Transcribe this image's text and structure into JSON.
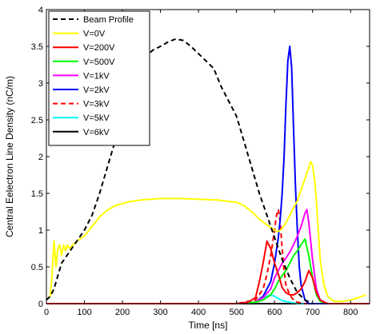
{
  "chart_data": {
    "type": "line",
    "title": "",
    "xlabel": "Time [ns]",
    "ylabel": "Central Eelectron Line Density (nC/m)",
    "xlim": [
      0,
      850
    ],
    "ylim": [
      0,
      4
    ],
    "xticks": [
      0,
      100,
      200,
      300,
      400,
      500,
      600,
      700,
      800
    ],
    "yticks": [
      0,
      0.5,
      1,
      1.5,
      2,
      2.5,
      3,
      3.5,
      4
    ],
    "grid": false,
    "legend_position": "top-left",
    "series": [
      {
        "name": "Beam Profile",
        "color": "#000000",
        "dash": "dashed",
        "x": [
          0,
          10,
          20,
          30,
          40,
          60,
          80,
          100,
          120,
          140,
          160,
          180,
          200,
          220,
          240,
          260,
          280,
          300,
          320,
          340,
          360,
          380,
          400,
          420,
          440,
          460,
          480,
          500,
          520,
          540,
          560,
          580,
          600,
          620,
          640,
          660,
          680,
          700
        ],
        "y": [
          0.05,
          0.1,
          0.2,
          0.38,
          0.55,
          0.7,
          0.85,
          1.0,
          1.2,
          1.5,
          1.85,
          2.2,
          2.6,
          2.95,
          3.2,
          3.35,
          3.45,
          3.5,
          3.56,
          3.6,
          3.58,
          3.5,
          3.4,
          3.3,
          3.2,
          2.95,
          2.75,
          2.55,
          2.2,
          1.85,
          1.5,
          1.2,
          0.9,
          0.6,
          0.35,
          0.15,
          0.05,
          0.0
        ]
      },
      {
        "name": "V=0V",
        "color": "#ffff00",
        "dash": "solid",
        "x": [
          0,
          10,
          15,
          20,
          25,
          30,
          35,
          40,
          45,
          50,
          55,
          60,
          70,
          80,
          100,
          120,
          140,
          160,
          180,
          200,
          220,
          250,
          300,
          350,
          400,
          450,
          480,
          500,
          520,
          540,
          560,
          580,
          600,
          610,
          620,
          630,
          640,
          650,
          660,
          670,
          680,
          690,
          695,
          700,
          705,
          710,
          715,
          720,
          730,
          740,
          750,
          760,
          780,
          800,
          820,
          840
        ],
        "y": [
          0.05,
          0.1,
          0.4,
          0.85,
          0.5,
          0.75,
          0.8,
          0.65,
          0.8,
          0.72,
          0.8,
          0.75,
          0.8,
          0.85,
          0.92,
          1.05,
          1.18,
          1.27,
          1.33,
          1.36,
          1.39,
          1.41,
          1.43,
          1.43,
          1.42,
          1.41,
          1.39,
          1.38,
          1.33,
          1.25,
          1.15,
          1.07,
          1.0,
          0.98,
          1.02,
          1.1,
          1.2,
          1.3,
          1.4,
          1.55,
          1.7,
          1.85,
          1.93,
          1.88,
          1.7,
          1.4,
          1.0,
          0.6,
          0.25,
          0.1,
          0.05,
          0.03,
          0.03,
          0.05,
          0.08,
          0.12
        ]
      },
      {
        "name": "V=200V",
        "color": "#ff0000",
        "dash": "solid",
        "x": [
          0,
          100,
          200,
          300,
          400,
          500,
          530,
          550,
          560,
          570,
          580,
          590,
          600,
          610,
          620,
          630,
          640,
          650,
          660,
          670,
          680,
          690,
          700,
          710,
          720,
          730,
          740,
          760,
          800,
          850
        ],
        "y": [
          0,
          0,
          0,
          0,
          0,
          0,
          0.02,
          0.08,
          0.3,
          0.55,
          0.85,
          0.75,
          0.55,
          0.4,
          0.22,
          0.15,
          0.12,
          0.12,
          0.15,
          0.2,
          0.3,
          0.45,
          0.35,
          0.15,
          0.05,
          0.02,
          0.0,
          0.0,
          0.0,
          0.0
        ]
      },
      {
        "name": "V=500V",
        "color": "#00ff00",
        "dash": "solid",
        "x": [
          0,
          100,
          200,
          300,
          400,
          500,
          550,
          570,
          590,
          600,
          610,
          620,
          630,
          640,
          650,
          660,
          670,
          680,
          690,
          700,
          710,
          720,
          740,
          800,
          850
        ],
        "y": [
          0,
          0,
          0,
          0,
          0,
          0,
          0.02,
          0.05,
          0.12,
          0.2,
          0.3,
          0.38,
          0.45,
          0.55,
          0.65,
          0.72,
          0.8,
          0.88,
          0.65,
          0.35,
          0.12,
          0.03,
          0.0,
          0.0,
          0.0
        ]
      },
      {
        "name": "V=1kV",
        "color": "#ff00ff",
        "dash": "solid",
        "x": [
          0,
          100,
          200,
          300,
          400,
          500,
          550,
          570,
          590,
          600,
          610,
          620,
          630,
          640,
          650,
          660,
          670,
          680,
          685,
          690,
          700,
          710,
          720,
          740,
          800,
          850
        ],
        "y": [
          0,
          0,
          0,
          0,
          0,
          0,
          0.02,
          0.08,
          0.2,
          0.35,
          0.45,
          0.55,
          0.62,
          0.7,
          0.8,
          0.92,
          1.05,
          1.23,
          1.28,
          1.1,
          0.6,
          0.2,
          0.05,
          0.0,
          0.0,
          0.0
        ]
      },
      {
        "name": "V=2kV",
        "color": "#0000ff",
        "dash": "solid",
        "x": [
          0,
          100,
          200,
          300,
          400,
          500,
          550,
          570,
          590,
          600,
          610,
          615,
          620,
          625,
          630,
          635,
          640,
          645,
          650,
          655,
          660,
          665,
          670,
          680,
          690,
          700,
          720,
          800,
          850
        ],
        "y": [
          0,
          0,
          0,
          0,
          0,
          0,
          0.02,
          0.1,
          0.3,
          0.55,
          0.9,
          1.15,
          1.5,
          2.0,
          2.7,
          3.3,
          3.5,
          3.2,
          2.4,
          1.6,
          1.0,
          0.5,
          0.25,
          0.05,
          0.0,
          0.0,
          0.0,
          0.0,
          0.0
        ]
      },
      {
        "name": "V=3kV",
        "color": "#ff0000",
        "dash": "dashed",
        "x": [
          0,
          100,
          200,
          300,
          400,
          500,
          550,
          570,
          580,
          590,
          600,
          605,
          610,
          615,
          620,
          625,
          630,
          640,
          650,
          660,
          680,
          700,
          800,
          850
        ],
        "y": [
          0,
          0,
          0,
          0,
          0,
          0,
          0.05,
          0.2,
          0.4,
          0.65,
          1.0,
          1.2,
          1.28,
          1.1,
          0.75,
          0.45,
          0.25,
          0.12,
          0.05,
          0.02,
          0.0,
          0.0,
          0.0,
          0.0
        ]
      },
      {
        "name": "V=5kV",
        "color": "#00ffff",
        "dash": "solid",
        "x": [
          0,
          100,
          200,
          300,
          400,
          500,
          550,
          560,
          570,
          580,
          590,
          600,
          610,
          620,
          640,
          660,
          680,
          700,
          800,
          850
        ],
        "y": [
          0,
          0,
          0,
          0,
          0,
          0,
          0.02,
          0.05,
          0.08,
          0.1,
          0.12,
          0.1,
          0.07,
          0.04,
          0.02,
          0.0,
          0.0,
          0.0,
          0.0,
          0.0
        ]
      },
      {
        "name": "V=6kV",
        "color": "#000000",
        "dash": "solid",
        "x": [
          0,
          100,
          200,
          300,
          400,
          500,
          600,
          700,
          800,
          850
        ],
        "y": [
          0,
          0,
          0,
          0,
          0,
          0,
          0,
          0,
          0,
          0
        ]
      }
    ]
  }
}
